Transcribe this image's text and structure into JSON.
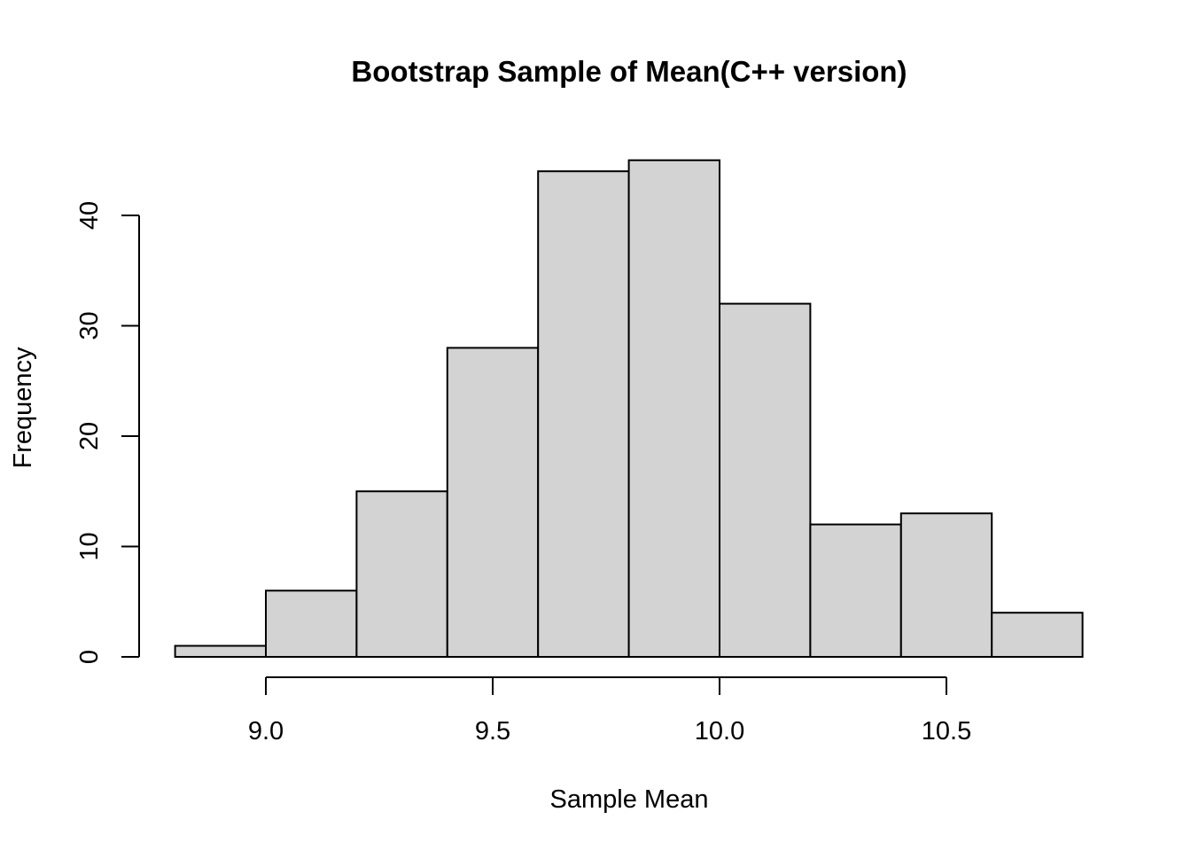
{
  "chart_data": {
    "type": "bar",
    "subtype": "histogram",
    "title": "Bootstrap Sample of Mean(C++ version)",
    "xlabel": "Sample Mean",
    "ylabel": "Frequency",
    "bins": [
      {
        "x0": 8.8,
        "x1": 9.0,
        "count": 1
      },
      {
        "x0": 9.0,
        "x1": 9.2,
        "count": 6
      },
      {
        "x0": 9.2,
        "x1": 9.4,
        "count": 15
      },
      {
        "x0": 9.4,
        "x1": 9.6,
        "count": 28
      },
      {
        "x0": 9.6,
        "x1": 9.8,
        "count": 44
      },
      {
        "x0": 9.8,
        "x1": 10.0,
        "count": 45
      },
      {
        "x0": 10.0,
        "x1": 10.2,
        "count": 32
      },
      {
        "x0": 10.2,
        "x1": 10.4,
        "count": 12
      },
      {
        "x0": 10.4,
        "x1": 10.6,
        "count": 13
      },
      {
        "x0": 10.6,
        "x1": 10.8,
        "count": 4
      }
    ],
    "xlim": [
      8.8,
      10.8
    ],
    "ylim": [
      0,
      45
    ],
    "x_ticks": [
      9.0,
      9.5,
      10.0,
      10.5
    ],
    "x_tick_labels": [
      "9.0",
      "9.5",
      "10.0",
      "10.5"
    ],
    "y_ticks": [
      0,
      10,
      20,
      30,
      40
    ],
    "y_tick_labels": [
      "0",
      "10",
      "20",
      "30",
      "40"
    ],
    "bar_fill": "#d3d3d3",
    "bar_stroke": "#000000",
    "grid": false,
    "legend": "none"
  }
}
